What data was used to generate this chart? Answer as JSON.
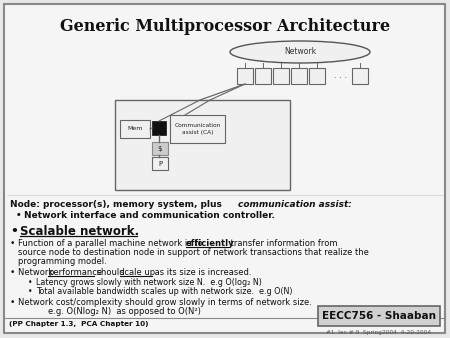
{
  "title": "Generic Multiprocessor Architecture",
  "footer_left": "(PP Chapter 1.3,  PCA Chapter 10)",
  "footer_right": "EECC756 - Shaaban",
  "footer_sub": "#1  lec # 9  Spring2004  4-20-2004"
}
